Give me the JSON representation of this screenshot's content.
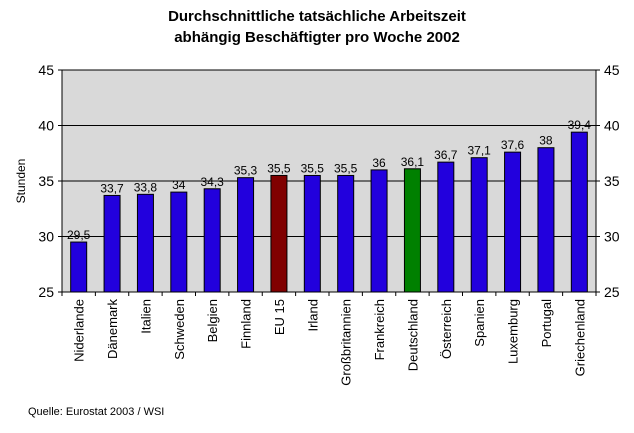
{
  "chart_data": {
    "type": "bar",
    "title_lines": [
      "Durchschnittliche tatsächliche Arbeitszeit",
      "abhängig Beschäftigter pro Woche 2002"
    ],
    "ylabel": "Stunden",
    "xlabel": "",
    "ylim": [
      25,
      45
    ],
    "yticks": [
      25,
      30,
      35,
      40,
      45
    ],
    "grid": true,
    "legend": "none",
    "categories": [
      "Niderlande",
      "Dänemark",
      "Italien",
      "Schweden",
      "Belgien",
      "Finnland",
      "EU 15",
      "Irland",
      "Großbritannien",
      "Frankreich",
      "Deutschland",
      "Österreich",
      "Spanien",
      "Luxemburg",
      "Portugal",
      "Griechenland"
    ],
    "values": [
      29.5,
      33.7,
      33.8,
      34,
      34.3,
      35.3,
      35.5,
      35.5,
      35.5,
      36,
      36.1,
      36.7,
      37.1,
      37.6,
      38,
      39.4
    ],
    "value_labels": [
      "29,5",
      "33,7",
      "33,8",
      "34",
      "34,3",
      "35,3",
      "35,5",
      "35,5",
      "35,5",
      "36",
      "36,1",
      "36,7",
      "37,1",
      "37,6",
      "38",
      "39,4"
    ],
    "colors": {
      "default": "#2200dd",
      "highlight": {
        "EU 15": "#800000",
        "Deutschland": "#008000"
      },
      "plot_background": "#d9d9d9",
      "gridline": "#000000"
    }
  },
  "source": "Quelle: Eurostat 2003 / WSI"
}
